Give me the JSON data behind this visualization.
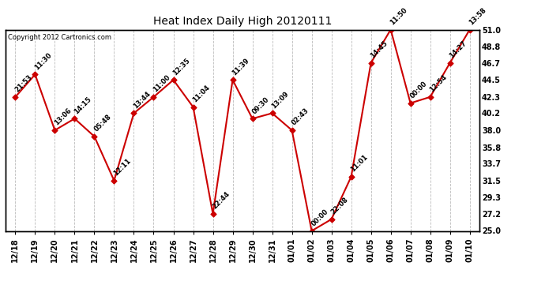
{
  "title": "Heat Index Daily High 20120111",
  "copyright": "Copyright 2012 Cartronics.com",
  "x_labels": [
    "12/18",
    "12/19",
    "12/20",
    "12/21",
    "12/22",
    "12/23",
    "12/24",
    "12/25",
    "12/26",
    "12/27",
    "12/28",
    "12/29",
    "12/30",
    "12/31",
    "01/01",
    "01/02",
    "01/03",
    "01/04",
    "01/05",
    "01/06",
    "01/07",
    "01/08",
    "01/09",
    "01/10"
  ],
  "y_values": [
    42.3,
    45.2,
    38.0,
    39.5,
    37.2,
    31.5,
    40.2,
    42.3,
    44.5,
    41.0,
    27.2,
    44.5,
    39.5,
    40.2,
    38.0,
    25.0,
    26.5,
    32.0,
    46.7,
    51.0,
    41.5,
    42.3,
    46.7,
    51.0
  ],
  "point_labels": [
    "21:53",
    "11:30",
    "13:06",
    "14:15",
    "05:48",
    "12:11",
    "13:44",
    "11:00",
    "12:35",
    "11:04",
    "22:44",
    "11:39",
    "09:30",
    "13:09",
    "02:43",
    "00:00",
    "22:08",
    "11:01",
    "14:45",
    "11:50",
    "00:00",
    "12:54",
    "14:27",
    "13:58"
  ],
  "line_color": "#cc0000",
  "marker_color": "#cc0000",
  "background_color": "#ffffff",
  "grid_color": "#bbbbbb",
  "ylim": [
    25.0,
    51.0
  ],
  "yticks": [
    25.0,
    27.2,
    29.3,
    31.5,
    33.7,
    35.8,
    38.0,
    40.2,
    42.3,
    44.5,
    46.7,
    48.8,
    51.0
  ],
  "fig_width": 6.9,
  "fig_height": 3.75,
  "dpi": 100
}
